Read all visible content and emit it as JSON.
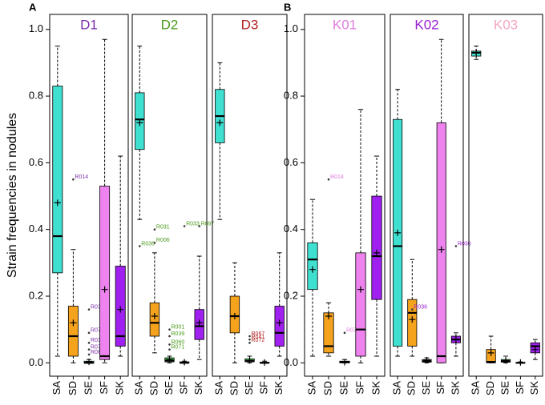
{
  "chart_data": [
    {
      "type": "box",
      "panel_label": "A",
      "ylabel": "Strain frequencies in nodules",
      "title": "D1",
      "title_color": "#7a2ea8",
      "categories": [
        "SA",
        "SD",
        "SE",
        "SF",
        "SK"
      ],
      "colors": [
        "#40e0d0",
        "#f5a21c",
        "#3ecf4a",
        "#ee82ee",
        "#a020f0"
      ],
      "ylim": [
        -0.04,
        1.045
      ],
      "yticks": [
        {
          "value": 0,
          "label": "0.0"
        },
        0.2,
        0.4,
        0.6,
        0.8,
        {
          "value": 1,
          "label": "1.0"
        }
      ],
      "boxes": [
        {
          "whislo": 0.02,
          "q1": 0.27,
          "med": 0.38,
          "q3": 0.83,
          "whishi": 0.95,
          "mean": 0.48,
          "outliers": []
        },
        {
          "whislo": 0.0,
          "q1": 0.02,
          "med": 0.08,
          "q3": 0.17,
          "whishi": 0.34,
          "mean": 0.12,
          "outliers": [
            {
              "value": 0.55,
              "label": "R014"
            }
          ]
        },
        {
          "whislo": 0.0,
          "q1": 0.0,
          "med": 0.0,
          "q3": 0.005,
          "whishi": 0.01,
          "mean": 0.003,
          "outliers": [
            {
              "value": 0.16,
              "label": "R036"
            },
            {
              "value": 0.09,
              "label": "R075"
            },
            {
              "value": 0.06,
              "label": "R035"
            },
            {
              "value": 0.04,
              "label": "R074"
            },
            {
              "value": 0.025,
              "label": "R069"
            }
          ]
        },
        {
          "whislo": 0.0,
          "q1": 0.01,
          "med": 0.02,
          "q3": 0.53,
          "whishi": 0.97,
          "mean": 0.22,
          "outliers": []
        },
        {
          "whislo": 0.02,
          "q1": 0.05,
          "med": 0.08,
          "q3": 0.29,
          "whishi": 0.62,
          "mean": 0.16,
          "outliers": []
        }
      ]
    },
    {
      "type": "box",
      "title": "D2",
      "title_color": "#4a9a1a",
      "categories": [
        "SA",
        "SD",
        "SE",
        "SF",
        "SK"
      ],
      "colors": [
        "#40e0d0",
        "#f5a21c",
        "#3ecf4a",
        "#ee82ee",
        "#a020f0"
      ],
      "ylim": [
        -0.04,
        1.045
      ],
      "boxes": [
        {
          "whislo": 0.43,
          "q1": 0.64,
          "med": 0.73,
          "q3": 0.81,
          "whishi": 0.95,
          "mean": 0.72,
          "outliers": [
            {
              "value": 0.35,
              "label": "R036"
            }
          ]
        },
        {
          "whislo": 0.03,
          "q1": 0.08,
          "med": 0.12,
          "q3": 0.18,
          "whishi": 0.33,
          "mean": 0.14,
          "outliers": [
            {
              "value": 0.4,
              "label": "R031"
            },
            {
              "value": 0.36,
              "label": "R006"
            }
          ]
        },
        {
          "whislo": 0.0,
          "q1": 0.003,
          "med": 0.007,
          "q3": 0.015,
          "whishi": 0.02,
          "mean": 0.01,
          "outliers": [
            {
              "value": 0.1,
              "label": "R001"
            },
            {
              "value": 0.08,
              "label": "R039"
            },
            {
              "value": 0.055,
              "label": "R060"
            },
            {
              "value": 0.04,
              "label": "R071"
            }
          ]
        },
        {
          "whislo": 0.0,
          "q1": 0.0,
          "med": 0.0,
          "q3": 0.003,
          "whishi": 0.005,
          "mean": 0.002,
          "outliers": [
            {
              "value": 0.41,
              "label": "R033"
            }
          ]
        },
        {
          "whislo": 0.01,
          "q1": 0.07,
          "med": 0.11,
          "q3": 0.16,
          "whishi": 0.32,
          "mean": 0.12,
          "outliers": [
            {
              "value": 0.41,
              "label": "R097"
            }
          ]
        }
      ]
    },
    {
      "type": "box",
      "title": "D3",
      "title_color": "#b22222",
      "categories": [
        "SA",
        "SD",
        "SE",
        "SF",
        "SK"
      ],
      "colors": [
        "#40e0d0",
        "#f5a21c",
        "#3ecf4a",
        "#ee82ee",
        "#a020f0"
      ],
      "ylim": [
        -0.04,
        1.045
      ],
      "boxes": [
        {
          "whislo": 0.43,
          "q1": 0.66,
          "med": 0.74,
          "q3": 0.82,
          "whishi": 0.9,
          "mean": 0.72,
          "outliers": []
        },
        {
          "whislo": 0.0,
          "q1": 0.09,
          "med": 0.14,
          "q3": 0.2,
          "whishi": 0.3,
          "mean": 0.14,
          "outliers": []
        },
        {
          "whislo": 0.0,
          "q1": 0.003,
          "med": 0.006,
          "q3": 0.012,
          "whishi": 0.02,
          "mean": 0.007,
          "outliers": [
            {
              "value": 0.08,
              "label": "R067"
            },
            {
              "value": 0.07,
              "label": "R041"
            },
            {
              "value": 0.06,
              "label": "R072"
            }
          ]
        },
        {
          "whislo": 0.0,
          "q1": 0.0,
          "med": 0.0,
          "q3": 0.002,
          "whishi": 0.005,
          "mean": 0.001,
          "outliers": []
        },
        {
          "whislo": 0.02,
          "q1": 0.05,
          "med": 0.09,
          "q3": 0.17,
          "whishi": 0.33,
          "mean": 0.12,
          "outliers": []
        }
      ]
    },
    {
      "type": "box",
      "panel_label": "B",
      "title": "K01",
      "title_color": "#e07be0",
      "categories": [
        "SA",
        "SD",
        "SE",
        "SF",
        "SK"
      ],
      "colors": [
        "#40e0d0",
        "#f5a21c",
        "#3ecf4a",
        "#ee82ee",
        "#a020f0"
      ],
      "ylim": [
        -0.04,
        1.045
      ],
      "yticks": [
        {
          "value": 0,
          "label": "0.0"
        },
        0.2,
        0.4,
        0.6,
        0.8,
        {
          "value": 1,
          "label": "1.0"
        }
      ],
      "boxes": [
        {
          "whislo": 0.02,
          "q1": 0.22,
          "med": 0.31,
          "q3": 0.36,
          "whishi": 0.49,
          "mean": 0.28,
          "outliers": []
        },
        {
          "whislo": 0.02,
          "q1": 0.03,
          "med": 0.05,
          "q3": 0.15,
          "whishi": 0.18,
          "mean": 0.14,
          "outliers": [
            {
              "value": 0.55,
              "label": "R014"
            }
          ]
        },
        {
          "whislo": 0.0,
          "q1": 0.0,
          "med": 0.002,
          "q3": 0.005,
          "whishi": 0.01,
          "mean": 0.002,
          "outliers": [
            {
              "value": 0.09,
              "label": "R075"
            }
          ]
        },
        {
          "whislo": 0.0,
          "q1": 0.02,
          "med": 0.1,
          "q3": 0.33,
          "whishi": 0.76,
          "mean": 0.22,
          "outliers": []
        },
        {
          "whislo": 0.02,
          "q1": 0.19,
          "med": 0.32,
          "q3": 0.5,
          "whishi": 0.62,
          "mean": 0.33,
          "outliers": []
        }
      ]
    },
    {
      "type": "box",
      "title": "K02",
      "title_color": "#9a20d0",
      "categories": [
        "SA",
        "SD",
        "SE",
        "SF",
        "SK"
      ],
      "colors": [
        "#40e0d0",
        "#f5a21c",
        "#3ecf4a",
        "#ee82ee",
        "#a020f0"
      ],
      "ylim": [
        -0.04,
        1.045
      ],
      "boxes": [
        {
          "whislo": 0.02,
          "q1": 0.05,
          "med": 0.35,
          "q3": 0.73,
          "whishi": 0.82,
          "mean": 0.39,
          "outliers": []
        },
        {
          "whislo": 0.02,
          "q1": 0.05,
          "med": 0.15,
          "q3": 0.19,
          "whishi": 0.31,
          "mean": 0.13,
          "outliers": [
            {
              "value": 0.16,
              "label": "R036"
            }
          ]
        },
        {
          "whislo": 0.0,
          "q1": 0.002,
          "med": 0.005,
          "q3": 0.01,
          "whishi": 0.015,
          "mean": 0.008,
          "outliers": []
        },
        {
          "whislo": 0.0,
          "q1": 0.0,
          "med": 0.02,
          "q3": 0.72,
          "whishi": 0.97,
          "mean": 0.34,
          "outliers": []
        },
        {
          "whislo": 0.02,
          "q1": 0.06,
          "med": 0.07,
          "q3": 0.08,
          "whishi": 0.09,
          "mean": 0.07,
          "outliers": [
            {
              "value": 0.35,
              "label": "R036"
            }
          ]
        }
      ]
    },
    {
      "type": "box",
      "title": "K03",
      "title_color": "#f4a6c6",
      "categories": [
        "SA",
        "SD",
        "SE",
        "SF",
        "SK"
      ],
      "colors": [
        "#40e0d0",
        "#f5a21c",
        "#3ecf4a",
        "#ee82ee",
        "#a020f0"
      ],
      "ylim": [
        -0.04,
        1.045
      ],
      "boxes": [
        {
          "whislo": 0.91,
          "q1": 0.92,
          "med": 0.93,
          "q3": 0.935,
          "whishi": 0.95,
          "mean": 0.93,
          "outliers": []
        },
        {
          "whislo": 0.0,
          "q1": 0.0,
          "med": 0.003,
          "q3": 0.04,
          "whishi": 0.08,
          "mean": 0.03,
          "outliers": []
        },
        {
          "whislo": 0.0,
          "q1": 0.002,
          "med": 0.005,
          "q3": 0.01,
          "whishi": 0.02,
          "mean": 0.007,
          "outliers": []
        },
        {
          "whislo": 0.0,
          "q1": 0.0,
          "med": 0.0,
          "q3": 0.001,
          "whishi": 0.003,
          "mean": 0.001,
          "outliers": []
        },
        {
          "whislo": 0.01,
          "q1": 0.03,
          "med": 0.05,
          "q3": 0.06,
          "whishi": 0.07,
          "mean": 0.04,
          "outliers": []
        }
      ]
    }
  ]
}
